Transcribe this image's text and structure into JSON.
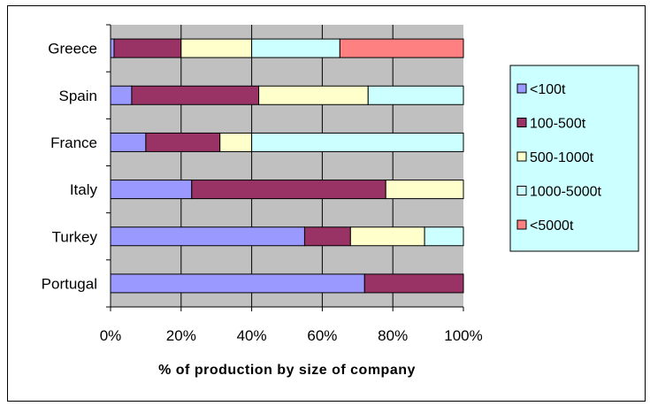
{
  "chart_data": {
    "type": "bar",
    "orientation": "horizontal",
    "stacked": "percent",
    "categories": [
      "Greece",
      "Spain",
      "France",
      "Italy",
      "Turkey",
      "Portugal"
    ],
    "series": [
      {
        "name": "<100t",
        "color": "#9999FF",
        "values": [
          1,
          6,
          10,
          23,
          55,
          72
        ]
      },
      {
        "name": "100-500t",
        "color": "#993366",
        "values": [
          19,
          36,
          21,
          55,
          13,
          28
        ]
      },
      {
        "name": "500-1000t",
        "color": "#FFFFCC",
        "values": [
          20,
          31,
          9,
          22,
          21,
          0
        ]
      },
      {
        "name": "1000-5000t",
        "color": "#CCFFFF",
        "values": [
          25,
          27,
          60,
          0,
          11,
          0
        ]
      },
      {
        "name": "<5000t",
        "color": "#FF8080",
        "values": [
          35,
          0,
          0,
          0,
          0,
          0
        ]
      }
    ],
    "xticks": [
      "0%",
      "20%",
      "40%",
      "60%",
      "80%",
      "100%"
    ],
    "xlim": [
      0,
      100
    ],
    "xlabel": "% of production by size of company",
    "ylabel": "",
    "title": "",
    "grid": true,
    "plot_background": "#C0C0C0",
    "legend_background": "#CCFFFF",
    "legend_position": "right"
  }
}
